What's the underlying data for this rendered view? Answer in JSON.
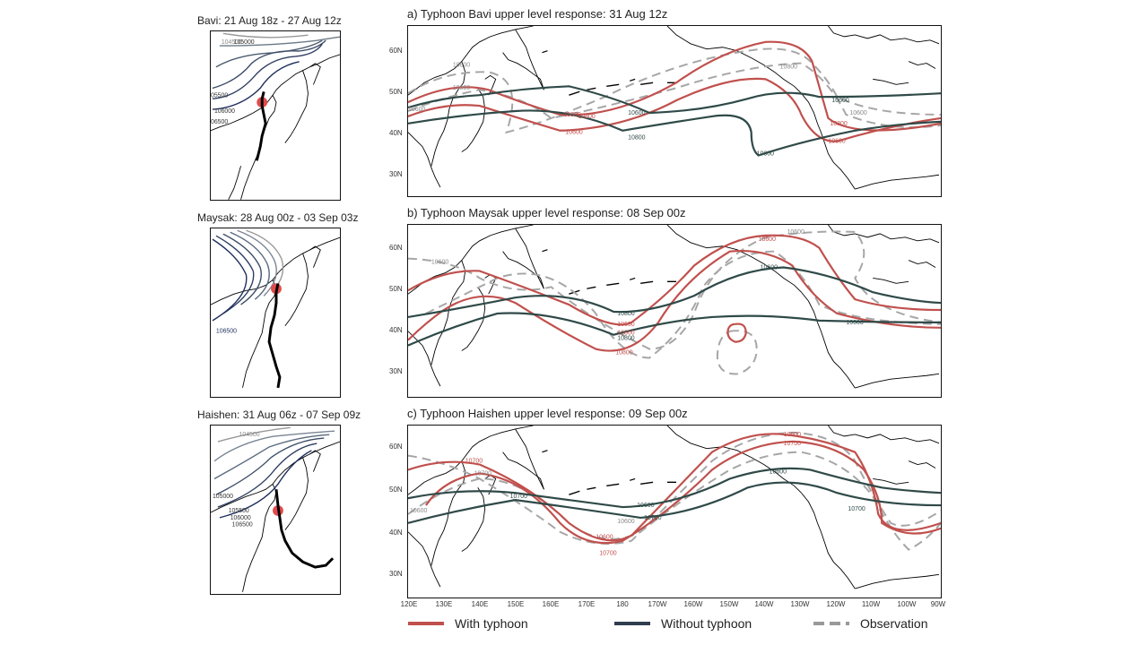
{
  "small_panels": [
    {
      "title": "Bavi: 21 Aug 18z - 27 Aug 12z",
      "labels": [
        "104500",
        "105000",
        "05500",
        "106000",
        "06500"
      ]
    },
    {
      "title": "Maysak: 28 Aug 00z - 03 Sep 03z",
      "labels": [
        "106500"
      ]
    },
    {
      "title": "Haishen: 31 Aug 06z - 07 Sep 09z",
      "labels": [
        "104500",
        "105000",
        "105500",
        "106000",
        "106500"
      ]
    }
  ],
  "main_panels": [
    {
      "title": "a) Typhoon Bavi upper level response: 31 Aug 12z",
      "lat_labels": [
        "60N",
        "50N",
        "40N",
        "30N"
      ],
      "contour_labels": {
        "red": [
          "10800",
          "10600",
          "10800",
          "10600",
          "10800"
        ],
        "dark": [
          "10600",
          "10800",
          "10800",
          "10600"
        ],
        "gray": [
          "10600",
          "10600",
          "10600",
          "10800",
          "10600"
        ]
      }
    },
    {
      "title": "b) Typhoon Maysak upper level response: 08 Sep 00z",
      "lat_labels": [
        "60N",
        "50N",
        "40N",
        "30N"
      ],
      "contour_labels": {
        "red": [
          "10600",
          "10600",
          "10800",
          "10800"
        ],
        "dark": [
          "10600",
          "10800",
          "10600",
          "10800"
        ],
        "gray": [
          "10600",
          "10600"
        ]
      }
    },
    {
      "title": "c) Typhoon Haishen upper level response: 09 Sep 00z",
      "lat_labels": [
        "60N",
        "50N",
        "40N",
        "30N"
      ],
      "contour_labels": {
        "red": [
          "10700",
          "10600",
          "10700",
          "10600",
          "10700"
        ],
        "dark": [
          "10600",
          "10700",
          "10600",
          "10700",
          "10700"
        ],
        "gray": [
          "10600",
          "10700",
          "10600"
        ]
      }
    }
  ],
  "lon_labels": [
    "120E",
    "130E",
    "140E",
    "150E",
    "160E",
    "170E",
    "180",
    "170W",
    "160W",
    "150W",
    "140W",
    "130W",
    "120W",
    "110W",
    "100W",
    "90W"
  ],
  "legend": {
    "with_typhoon": "With typhoon",
    "without_typhoon": "Without typhoon",
    "observation": "Observation"
  },
  "colors": {
    "with_typhoon": "#c0504d",
    "without_typhoon": "#2f4a48",
    "observation": "#a6a6a6",
    "coast": "#000000",
    "track": "#000000"
  }
}
